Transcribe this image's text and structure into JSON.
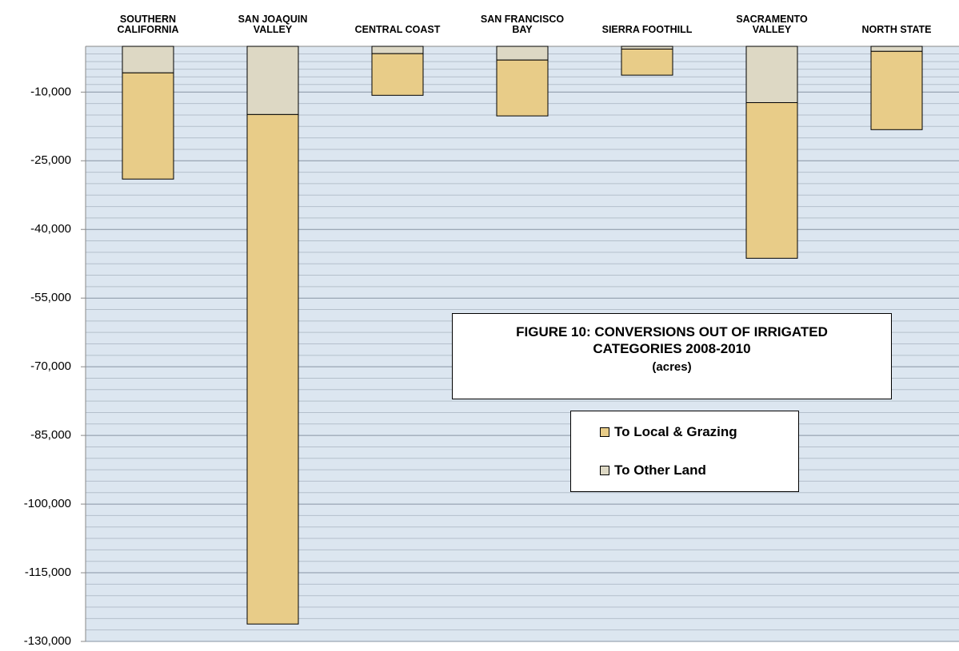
{
  "chart_data": {
    "type": "stacked_bar",
    "title": "FIGURE 10: CONVERSIONS OUT OF IRRIGATED CATEGORIES 2008-2010",
    "subtitle": "(acres)",
    "categories": [
      "SOUTHERN\nCALIFORNIA",
      "SAN JOAQUIN\nVALLEY",
      "CENTRAL COAST",
      "SAN FRANCISCO\nBAY",
      "SIERRA FOOTHILL",
      "SACRAMENTO\nVALLEY",
      "NORTH STATE"
    ],
    "series": [
      {
        "name": "To Local & Grazing",
        "color": "#e8cc88",
        "values": [
          -23200,
          -111300,
          -9100,
          -12200,
          -5700,
          -34000,
          -17100
        ]
      },
      {
        "name": "To Other Land",
        "color": "#ddd8c4",
        "values": [
          -5800,
          -14900,
          -1600,
          -3000,
          -600,
          -12300,
          -1100
        ]
      }
    ],
    "ylim": [
      -130000,
      0
    ],
    "yticks": [
      {
        "value": -130000,
        "label": "-130,000"
      },
      {
        "value": -115000,
        "label": "-115,000"
      },
      {
        "value": -100000,
        "label": "-100,000"
      },
      {
        "value": -85000,
        "label": "-85,000"
      },
      {
        "value": -70000,
        "label": "-70,000"
      },
      {
        "value": -55000,
        "label": "-55,000"
      },
      {
        "value": -40000,
        "label": "-40,000"
      },
      {
        "value": -25000,
        "label": "-25,000"
      },
      {
        "value": -10000,
        "label": "-10,000"
      }
    ],
    "grid": true
  }
}
